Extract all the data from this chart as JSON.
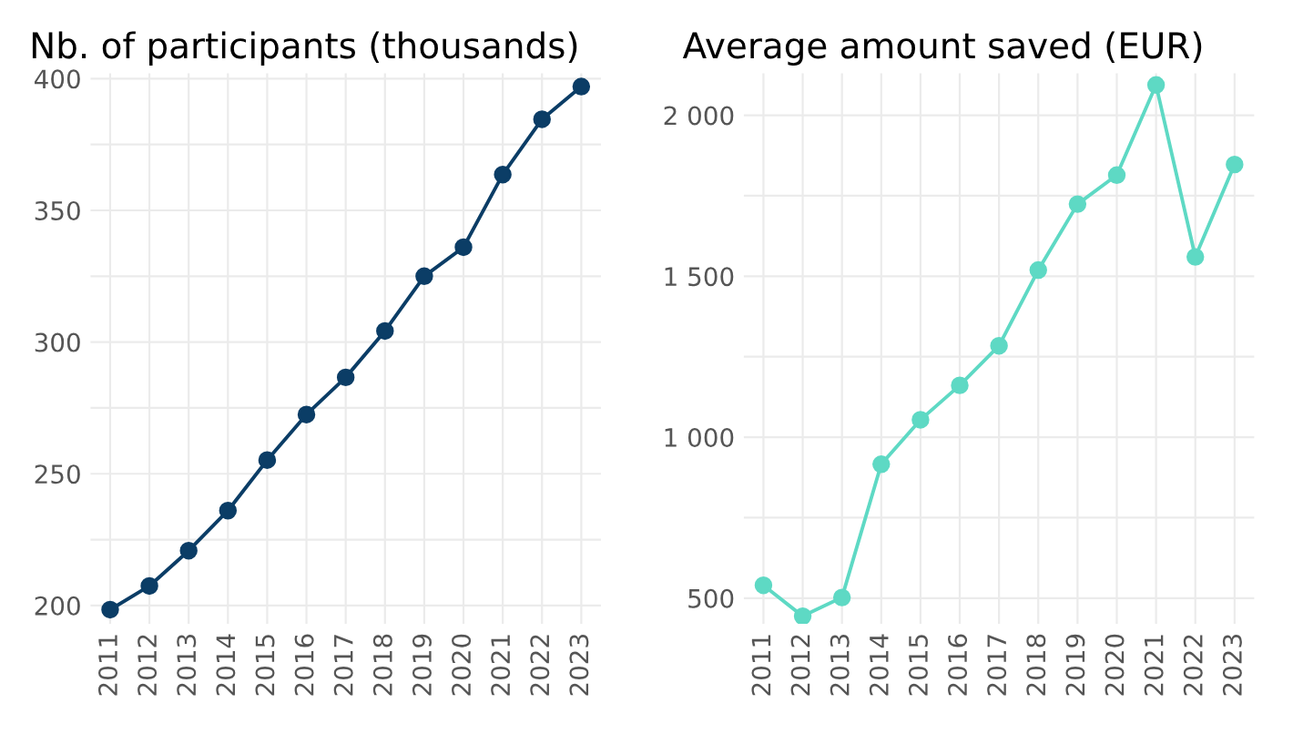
{
  "chart_data": [
    {
      "type": "line",
      "title": "Nb. of participants (thousands)",
      "categories": [
        "2011",
        "2012",
        "2013",
        "2014",
        "2015",
        "2016",
        "2017",
        "2018",
        "2019",
        "2020",
        "2021",
        "2022",
        "2023"
      ],
      "series": [
        {
          "color": "#0b3d66",
          "values": [
            198.4,
            207.4,
            220.8,
            236,
            255.2,
            272.5,
            286.6,
            304.2,
            325,
            336,
            363.6,
            384.6,
            397
          ]
        }
      ],
      "ylim": [
        193,
        402
      ],
      "yticks": [
        200,
        {
          "value": 225,
          "label": null
        },
        250,
        {
          "value": 275,
          "label": null
        },
        300,
        {
          "value": 325,
          "label": null
        },
        350,
        {
          "value": 375,
          "label": null
        },
        400
      ],
      "grid": true,
      "marker": "circle",
      "line_style": "solid"
    },
    {
      "type": "line",
      "title": "Average amount saved (EUR)",
      "categories": [
        "2011",
        "2012",
        "2013",
        "2014",
        "2015",
        "2016",
        "2017",
        "2018",
        "2019",
        "2020",
        "2021",
        "2022",
        "2023"
      ],
      "series": [
        {
          "color": "#5ed9c4",
          "values": [
            540,
            444,
            502,
            916,
            1054,
            1161,
            1284,
            1519,
            1724,
            1814,
            2094,
            1560,
            1847
          ]
        }
      ],
      "ylim": [
        420,
        2130
      ],
      "yticks": [
        {
          "value": 500,
          "label": "500"
        },
        {
          "value": 750,
          "label": null
        },
        {
          "value": 1000,
          "label": "1 000"
        },
        {
          "value": 1250,
          "label": null
        },
        {
          "value": 1500,
          "label": "1 500"
        },
        {
          "value": 1750,
          "label": null
        },
        {
          "value": 2000,
          "label": "2 000"
        }
      ],
      "grid": true,
      "marker": "circle",
      "line_style": "solid"
    }
  ]
}
